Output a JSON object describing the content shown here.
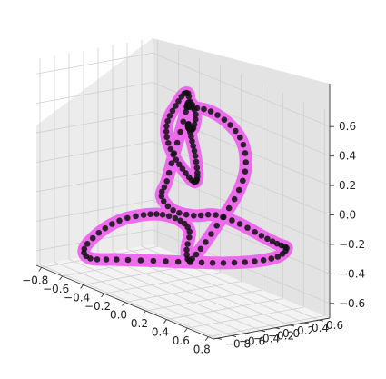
{
  "chart_data": {
    "type": "scatter",
    "projection": "3d",
    "title": "",
    "xlabel": "",
    "ylabel": "",
    "zlabel": "",
    "grid": true,
    "xlim": [
      -0.85,
      0.85
    ],
    "ylim": [
      -0.85,
      0.75
    ],
    "zlim": [
      -0.7,
      0.7
    ],
    "x_ticks": [
      "−0.8",
      "−0.6",
      "−0.4",
      "−0.2",
      "0.0",
      "0.2",
      "0.4",
      "0.6",
      "0.8"
    ],
    "y_ticks": [
      "−0.8",
      "−0.6",
      "−0.4",
      "−0.2",
      "0.0",
      "0.2",
      "0.4",
      "0.6"
    ],
    "z_ticks": [
      "−0.6",
      "−0.4",
      "−0.2",
      "0.0",
      "0.2",
      "0.4",
      "0.6"
    ],
    "colors": {
      "curve": "#ee55ee",
      "points": "#111111",
      "pane_left": "#ececec",
      "pane_right": "#e3e3e3",
      "pane_floor": "#f3f3f3",
      "grid": "#cfcfcf"
    },
    "curve_points": [
      [
        0.0,
        0.0,
        0.55
      ],
      [
        0.07,
        -0.05,
        0.61
      ],
      [
        0.15,
        -0.09,
        0.55
      ],
      [
        0.1,
        -0.05,
        0.44
      ],
      [
        0.02,
        0.02,
        0.4
      ],
      [
        -0.06,
        0.11,
        0.38
      ],
      [
        -0.14,
        0.22,
        0.36
      ],
      [
        -0.22,
        0.34,
        0.34
      ],
      [
        -0.28,
        0.44,
        0.28
      ],
      [
        -0.31,
        0.52,
        0.18
      ],
      [
        -0.3,
        0.55,
        0.08
      ],
      [
        -0.26,
        0.52,
        -0.02
      ],
      [
        -0.2,
        0.42,
        -0.05
      ],
      [
        -0.16,
        0.3,
        -0.02
      ],
      [
        -0.18,
        0.2,
        0.06
      ],
      [
        -0.22,
        0.13,
        0.15
      ],
      [
        -0.26,
        0.1,
        0.26
      ],
      [
        -0.28,
        0.14,
        0.36
      ],
      [
        -0.26,
        0.22,
        0.46
      ],
      [
        -0.22,
        0.28,
        0.55
      ],
      [
        -0.16,
        0.26,
        0.55
      ],
      [
        -0.13,
        0.14,
        0.4
      ],
      [
        -0.12,
        0.0,
        0.2
      ],
      [
        -0.12,
        -0.1,
        0.02
      ],
      [
        -0.13,
        -0.16,
        -0.08
      ],
      [
        -0.06,
        -0.1,
        -0.16
      ],
      [
        0.04,
        0.04,
        -0.18
      ],
      [
        0.14,
        0.2,
        -0.16
      ],
      [
        0.26,
        0.36,
        -0.2
      ],
      [
        0.37,
        0.5,
        -0.26
      ],
      [
        0.45,
        0.6,
        -0.3
      ],
      [
        0.5,
        0.66,
        -0.32
      ],
      [
        0.47,
        0.58,
        -0.38
      ],
      [
        0.36,
        0.42,
        -0.43
      ],
      [
        0.2,
        0.22,
        -0.47
      ],
      [
        0.02,
        0.02,
        -0.5
      ],
      [
        -0.18,
        -0.2,
        -0.53
      ],
      [
        -0.38,
        -0.42,
        -0.56
      ],
      [
        -0.52,
        -0.58,
        -0.58
      ],
      [
        -0.55,
        -0.62,
        -0.52
      ],
      [
        -0.48,
        -0.52,
        -0.4
      ],
      [
        -0.38,
        -0.38,
        -0.3
      ],
      [
        -0.26,
        -0.22,
        -0.24
      ],
      [
        -0.16,
        -0.1,
        -0.22
      ],
      [
        -0.06,
        0.0,
        -0.24
      ],
      [
        0.0,
        0.04,
        -0.3
      ],
      [
        0.0,
        0.0,
        -0.42
      ],
      [
        0.04,
        -0.02,
        -0.48
      ],
      [
        0.12,
        0.02,
        -0.38
      ],
      [
        0.22,
        0.1,
        -0.2
      ],
      [
        0.32,
        0.2,
        0.0
      ],
      [
        0.38,
        0.26,
        0.2
      ],
      [
        0.37,
        0.25,
        0.38
      ],
      [
        0.3,
        0.17,
        0.5
      ],
      [
        0.19,
        0.06,
        0.57
      ],
      [
        0.07,
        -0.03,
        0.57
      ],
      [
        0.0,
        0.0,
        0.55
      ]
    ]
  }
}
